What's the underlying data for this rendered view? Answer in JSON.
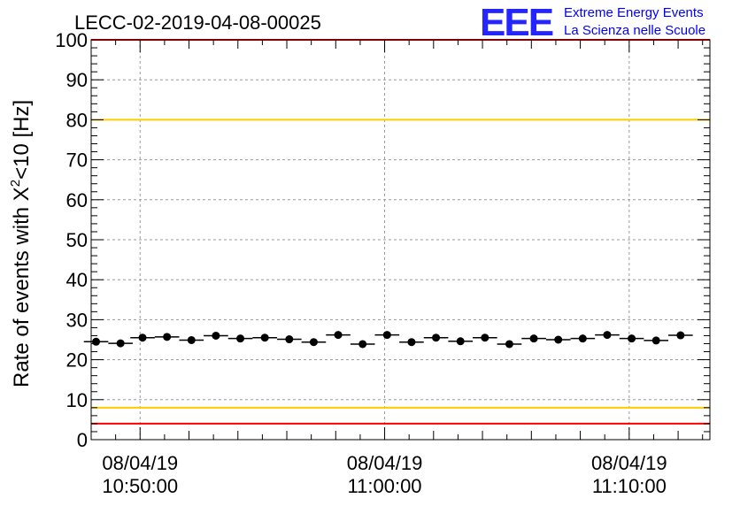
{
  "title": "LECC-02-2019-04-08-00025",
  "logo": {
    "mark": "EEE",
    "line1": "Extreme Energy Events",
    "line2": "La Scienza nelle Scuole",
    "color": "#0000ff"
  },
  "chart_data": {
    "type": "scatter",
    "title": "LECC-02-2019-04-08-00025",
    "ylabel_main": "Rate of events with X",
    "ylabel_sup": "2",
    "ylabel_tail": "<10 [Hz]",
    "ylim": [
      0,
      100
    ],
    "yticks": [
      0,
      10,
      20,
      30,
      40,
      50,
      60,
      70,
      80,
      90,
      100
    ],
    "xlim_minutes": [
      -2,
      23.3
    ],
    "xticks": [
      {
        "minute": 0,
        "date": "08/04/19",
        "time": "10:50:00"
      },
      {
        "minute": 10,
        "date": "08/04/19",
        "time": "11:00:00"
      },
      {
        "minute": 20,
        "date": "08/04/19",
        "time": "11:10:00"
      }
    ],
    "grid": true,
    "reference_lines": [
      {
        "y": 100,
        "color": "#ff0000"
      },
      {
        "y": 80,
        "color": "#ffcc00"
      },
      {
        "y": 8,
        "color": "#ffcc00"
      },
      {
        "y": 4,
        "color": "#ff0000"
      }
    ],
    "series": [
      {
        "marker_color": "#000000",
        "bin_width_minutes": 1,
        "x_minutes": [
          -1.8,
          -0.8,
          0.1,
          1.1,
          2.1,
          3.1,
          4.1,
          5.1,
          6.1,
          7.1,
          8.1,
          9.1,
          10.1,
          11.1,
          12.1,
          13.1,
          14.1,
          15.1,
          16.1,
          17.1,
          18.1,
          19.1,
          20.1,
          21.1,
          22.1
        ],
        "y": [
          24.5,
          24.1,
          25.5,
          25.7,
          24.9,
          26.0,
          25.3,
          25.5,
          25.1,
          24.4,
          26.2,
          23.9,
          26.2,
          24.4,
          25.5,
          24.6,
          25.5,
          23.9,
          25.3,
          25.0,
          25.3,
          26.2,
          25.3,
          24.8,
          26.1
        ]
      }
    ]
  }
}
